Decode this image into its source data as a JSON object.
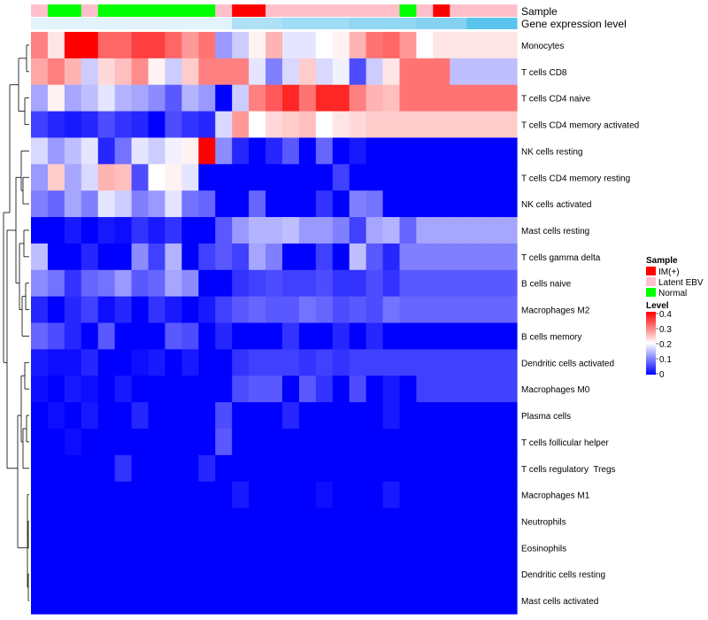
{
  "chart_data": {
    "type": "heatmap",
    "annotations": {
      "sample_label": "Sample",
      "gene_label": "Gene expression level",
      "sample_groups": [
        "Latent EBV",
        "Normal",
        "Normal",
        "Latent EBV",
        "Normal",
        "Normal",
        "Normal",
        "Normal",
        "Normal",
        "Normal",
        "Normal",
        "Latent EBV",
        "IM(+)",
        "IM(+)",
        "Latent EBV",
        "Latent EBV",
        "Latent EBV",
        "Latent EBV",
        "Latent EBV",
        "Latent EBV",
        "Latent EBV",
        "Latent EBV",
        "Normal",
        "Latent EBV",
        "IM(+)",
        "Latent EBV",
        "Latent EBV",
        "Latent EBV",
        "Latent EBV"
      ],
      "gene_colors": [
        "#e2f3fb",
        "#e2f3fb",
        "#e2f3fb",
        "#e2f3fb",
        "#e2f3fb",
        "#e2f3fb",
        "#e2f3fb",
        "#e2f3fb",
        "#e2f3fb",
        "#e2f3fb",
        "#e2f3fb",
        "#e2f3fb",
        "#aee0f6",
        "#aee0f6",
        "#aee0f6",
        "#9fdcf5",
        "#9fdcf5",
        "#9fdcf5",
        "#9fdcf5",
        "#92d7f3",
        "#92d7f3",
        "#92d7f3",
        "#92d7f3",
        "#84d1f2",
        "#84d1f2",
        "#84d1f2",
        "#5bc4ee",
        "#5bc4ee",
        "#5bc4ee"
      ]
    },
    "rows": [
      "Monocytes",
      "T cells CD8",
      "T cells CD4 naive",
      "T cells CD4 memory activated",
      "NK cells resting",
      "T cells CD4 memory resting",
      "NK cells activated",
      "Mast cells resting",
      "T cells gamma delta",
      "B cells naive",
      "Macrophages M2",
      "B cells memory",
      "Dendritic cells activated",
      "Macrophages M0",
      "Plasma cells",
      "T cells follicular helper",
      "T cells regulatory  Tregs",
      "Macrophages M1",
      "Neutrophils",
      "Eosinophils",
      "Dendritic cells resting",
      "Mast cells activated"
    ],
    "values": [
      [
        0.3,
        0.22,
        0.4,
        0.4,
        0.32,
        0.32,
        0.35,
        0.35,
        0.32,
        0.28,
        0.31,
        0.12,
        0.16,
        0.21,
        0.26,
        0.18,
        0.18,
        0.2,
        0.21,
        0.26,
        0.31,
        0.32,
        0.28,
        0.2,
        0.22,
        0.22,
        0.22,
        0.22,
        0.22
      ],
      [
        0.27,
        0.3,
        0.26,
        0.16,
        0.23,
        0.25,
        0.29,
        0.21,
        0.16,
        0.24,
        0.3,
        0.3,
        0.3,
        0.18,
        0.1,
        0.17,
        0.24,
        0.17,
        0.19,
        0.06,
        0.16,
        0.22,
        0.31,
        0.31,
        0.31,
        0.15,
        0.15,
        0.15,
        0.15
      ],
      [
        0.13,
        0.21,
        0.13,
        0.15,
        0.18,
        0.14,
        0.13,
        0.11,
        0.07,
        0.14,
        0.12,
        0.0,
        0.16,
        0.3,
        0.33,
        0.37,
        0.31,
        0.37,
        0.37,
        0.3,
        0.26,
        0.25,
        0.31,
        0.31,
        0.31,
        0.31,
        0.31,
        0.31,
        0.31
      ],
      [
        0.05,
        0.03,
        0.02,
        0.03,
        0.06,
        0.04,
        0.03,
        0.0,
        0.06,
        0.04,
        0.03,
        0.17,
        0.28,
        0.2,
        0.23,
        0.24,
        0.25,
        0.2,
        0.22,
        0.23,
        0.24,
        0.24,
        0.24,
        0.24,
        0.24,
        0.24,
        0.24,
        0.24,
        0.24
      ],
      [
        0.17,
        0.12,
        0.15,
        0.18,
        0.03,
        0.09,
        0.18,
        0.16,
        0.19,
        0.21,
        0.4,
        0.11,
        0.03,
        0.0,
        0.03,
        0.07,
        0.0,
        0.08,
        0.0,
        0.02,
        0.0,
        0.0,
        0.0,
        0.0,
        0.0,
        0.0,
        0.0,
        0.0,
        0.0
      ],
      [
        0.12,
        0.24,
        0.13,
        0.17,
        0.26,
        0.25,
        0.06,
        0.2,
        0.21,
        0.18,
        0.0,
        0.0,
        0.0,
        0.0,
        0.0,
        0.0,
        0.0,
        0.0,
        0.05,
        0.0,
        0.0,
        0.0,
        0.0,
        0.0,
        0.0,
        0.0,
        0.0,
        0.0,
        0.0
      ],
      [
        0.1,
        0.08,
        0.13,
        0.1,
        0.18,
        0.16,
        0.1,
        0.12,
        0.18,
        0.09,
        0.08,
        0.0,
        0.0,
        0.08,
        0.0,
        0.0,
        0.0,
        0.04,
        0.0,
        0.1,
        0.09,
        0.0,
        0.0,
        0.0,
        0.0,
        0.0,
        0.0,
        0.0,
        0.0
      ],
      [
        0.0,
        0.0,
        0.02,
        0.0,
        0.02,
        0.01,
        0.04,
        0.02,
        0.04,
        0.0,
        0.0,
        0.07,
        0.12,
        0.14,
        0.14,
        0.15,
        0.12,
        0.12,
        0.1,
        0.05,
        0.13,
        0.14,
        0.08,
        0.13,
        0.13,
        0.13,
        0.13,
        0.13,
        0.13
      ],
      [
        0.15,
        0.0,
        0.0,
        0.03,
        0.0,
        0.0,
        0.11,
        0.05,
        0.14,
        0.0,
        0.05,
        0.07,
        0.05,
        0.13,
        0.1,
        0.0,
        0.0,
        0.05,
        0.0,
        0.15,
        0.07,
        0.03,
        0.1,
        0.1,
        0.1,
        0.1,
        0.1,
        0.1,
        0.1
      ],
      [
        0.11,
        0.09,
        0.04,
        0.08,
        0.09,
        0.12,
        0.07,
        0.08,
        0.13,
        0.11,
        0.0,
        0.0,
        0.04,
        0.05,
        0.06,
        0.05,
        0.05,
        0.06,
        0.04,
        0.04,
        0.06,
        0.04,
        0.07,
        0.07,
        0.07,
        0.07,
        0.07,
        0.07,
        0.07
      ],
      [
        0.03,
        0.0,
        0.03,
        0.05,
        0.01,
        0.03,
        0.0,
        0.04,
        0.02,
        0.0,
        0.02,
        0.05,
        0.07,
        0.08,
        0.07,
        0.07,
        0.09,
        0.08,
        0.06,
        0.07,
        0.06,
        0.09,
        0.08,
        0.08,
        0.08,
        0.08,
        0.08,
        0.08,
        0.08
      ],
      [
        0.08,
        0.06,
        0.03,
        0.0,
        0.07,
        0.0,
        0.0,
        0.0,
        0.07,
        0.06,
        0.0,
        0.03,
        0.0,
        0.0,
        0.0,
        0.04,
        0.0,
        0.0,
        0.03,
        0.0,
        0.03,
        0.0,
        0.0,
        0.0,
        0.0,
        0.0,
        0.0,
        0.0,
        0.0
      ],
      [
        0.02,
        0.01,
        0.01,
        0.03,
        0.0,
        0.0,
        0.01,
        0.02,
        0.0,
        0.02,
        0.0,
        0.0,
        0.04,
        0.05,
        0.05,
        0.05,
        0.04,
        0.05,
        0.04,
        0.05,
        0.05,
        0.05,
        0.05,
        0.05,
        0.05,
        0.05,
        0.05,
        0.05,
        0.05
      ],
      [
        0.01,
        0.0,
        0.02,
        0.01,
        0.0,
        0.02,
        0.0,
        0.0,
        0.0,
        0.0,
        0.0,
        0.0,
        0.06,
        0.07,
        0.07,
        0.0,
        0.07,
        0.04,
        0.0,
        0.06,
        0.0,
        0.02,
        0.0,
        0.05,
        0.05,
        0.05,
        0.05,
        0.05,
        0.05
      ],
      [
        0.0,
        0.01,
        0.0,
        0.02,
        0.0,
        0.0,
        0.03,
        0.0,
        0.0,
        0.0,
        0.0,
        0.06,
        0.0,
        0.0,
        0.0,
        0.03,
        0.0,
        0.0,
        0.0,
        0.0,
        0.0,
        0.02,
        0.0,
        0.0,
        0.0,
        0.0,
        0.0,
        0.0,
        0.0
      ],
      [
        0.0,
        0.0,
        0.01,
        0.0,
        0.0,
        0.0,
        0.0,
        0.0,
        0.0,
        0.0,
        0.0,
        0.07,
        0.0,
        0.0,
        0.0,
        0.0,
        0.0,
        0.0,
        0.0,
        0.0,
        0.0,
        0.0,
        0.0,
        0.0,
        0.0,
        0.0,
        0.0,
        0.0,
        0.0
      ],
      [
        0.0,
        0.0,
        0.0,
        0.0,
        0.0,
        0.04,
        0.0,
        0.0,
        0.0,
        0.0,
        0.03,
        0.0,
        0.0,
        0.0,
        0.0,
        0.0,
        0.0,
        0.0,
        0.0,
        0.0,
        0.0,
        0.0,
        0.0,
        0.0,
        0.0,
        0.0,
        0.0,
        0.0,
        0.0
      ],
      [
        0.0,
        0.0,
        0.0,
        0.0,
        0.0,
        0.0,
        0.0,
        0.0,
        0.0,
        0.0,
        0.0,
        0.0,
        0.02,
        0.0,
        0.0,
        0.0,
        0.0,
        0.01,
        0.0,
        0.0,
        0.0,
        0.02,
        0.0,
        0.0,
        0.0,
        0.0,
        0.0,
        0.0,
        0.0
      ],
      [
        0.0,
        0.0,
        0.0,
        0.0,
        0.0,
        0.0,
        0.0,
        0.0,
        0.0,
        0.0,
        0.0,
        0.0,
        0.0,
        0.0,
        0.0,
        0.0,
        0.0,
        0.0,
        0.0,
        0.0,
        0.0,
        0.0,
        0.0,
        0.0,
        0.0,
        0.0,
        0.0,
        0.0,
        0.0
      ],
      [
        0.0,
        0.0,
        0.0,
        0.0,
        0.0,
        0.0,
        0.0,
        0.0,
        0.0,
        0.0,
        0.0,
        0.0,
        0.0,
        0.0,
        0.0,
        0.0,
        0.0,
        0.0,
        0.0,
        0.0,
        0.0,
        0.0,
        0.0,
        0.0,
        0.0,
        0.0,
        0.0,
        0.0,
        0.0
      ],
      [
        0.0,
        0.0,
        0.0,
        0.0,
        0.0,
        0.0,
        0.0,
        0.0,
        0.0,
        0.0,
        0.0,
        0.0,
        0.0,
        0.0,
        0.0,
        0.0,
        0.0,
        0.0,
        0.0,
        0.0,
        0.0,
        0.0,
        0.0,
        0.0,
        0.0,
        0.0,
        0.0,
        0.0,
        0.0
      ],
      [
        0.0,
        0.0,
        0.0,
        0.0,
        0.0,
        0.0,
        0.0,
        0.0,
        0.0,
        0.0,
        0.0,
        0.0,
        0.0,
        0.0,
        0.0,
        0.0,
        0.0,
        0.0,
        0.0,
        0.0,
        0.0,
        0.0,
        0.0,
        0.0,
        0.0,
        0.0,
        0.0,
        0.0,
        0.0
      ]
    ],
    "value_range": [
      0,
      0.4
    ],
    "color_scale": [
      "#0000ff",
      "#ffffff",
      "#ff0000"
    ],
    "legend": {
      "sample_title": "Sample",
      "sample_items": [
        {
          "label": "IM(+)",
          "color": "#ff0000"
        },
        {
          "label": "Latent EBV",
          "color": "#ffc0cb"
        },
        {
          "label": "Normal",
          "color": "#00ff00"
        }
      ],
      "level_title": "Level",
      "level_ticks": [
        "0.4",
        "0.3",
        "0.2",
        "0.1",
        "0"
      ]
    },
    "legend_position": "right",
    "dendrogram": "rows"
  }
}
